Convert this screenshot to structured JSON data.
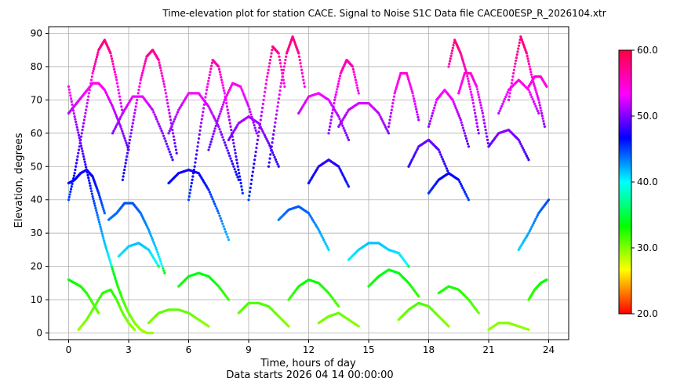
{
  "chart_data": {
    "type": "scatter",
    "title": "Time-elevation plot for station CACE.    Signal to Noise S1C    Data file CACE00ESP_R_2026104.xtr",
    "xlabel": "Time, hours of day",
    "xlabel_sub": "Data starts 2026 04 14 00:00:00",
    "ylabel": "Elevation, degrees",
    "xlim": [
      -1,
      25
    ],
    "ylim": [
      -2,
      92
    ],
    "xticks": [
      0,
      3,
      6,
      9,
      12,
      15,
      18,
      21,
      24
    ],
    "yticks": [
      0,
      10,
      20,
      30,
      40,
      50,
      60,
      70,
      80,
      90
    ],
    "grid": true,
    "colorbar": {
      "min": 20,
      "max": 60,
      "ticks": [
        20.0,
        30.0,
        40.0,
        50.0,
        60.0
      ],
      "tick_labels": [
        "20.0",
        "30.0",
        "40.0",
        "50.0",
        "60.0"
      ],
      "colormap": "hsv"
    },
    "series": [
      {
        "x": [
          0.0,
          0.3,
          0.6,
          0.9,
          1.2,
          1.5,
          1.8,
          2.1,
          2.4,
          2.7,
          3.0,
          3.3,
          3.6,
          3.9,
          4.2
        ],
        "y": [
          74,
          65,
          57,
          49,
          41,
          34,
          27,
          21,
          15,
          10,
          6,
          3,
          1,
          0,
          0
        ]
      },
      {
        "x": [
          0.0,
          0.3,
          0.6,
          0.9,
          1.2,
          1.5,
          1.8,
          2.1,
          2.4,
          2.7
        ],
        "y": [
          40,
          48,
          58,
          68,
          78,
          85,
          88,
          84,
          76,
          66
        ]
      },
      {
        "x": [
          2.7,
          3.0,
          3.3,
          3.6,
          3.9,
          4.2,
          4.5,
          4.8,
          5.1,
          5.4
        ],
        "y": [
          46,
          56,
          66,
          76,
          83,
          85,
          82,
          74,
          64,
          54
        ]
      },
      {
        "x": [
          0.0,
          0.4,
          0.8,
          1.2,
          1.5,
          1.8,
          2.2,
          2.6,
          3.0
        ],
        "y": [
          66,
          69,
          72,
          75,
          75,
          73,
          68,
          62,
          55
        ]
      },
      {
        "x": [
          0.0,
          0.3,
          0.6,
          0.9,
          1.2,
          1.5,
          1.8
        ],
        "y": [
          45,
          46,
          48,
          49,
          47,
          42,
          36
        ]
      },
      {
        "x": [
          0.0,
          0.3,
          0.6,
          0.9,
          1.2,
          1.5
        ],
        "y": [
          16,
          15,
          14,
          12,
          9,
          6
        ]
      },
      {
        "x": [
          0.5,
          0.9,
          1.3,
          1.7,
          2.1,
          2.4,
          2.7,
          3.0,
          3.3
        ],
        "y": [
          1,
          4,
          8,
          12,
          13,
          10,
          6,
          3,
          1
        ]
      },
      {
        "x": [
          2.0,
          2.4,
          2.8,
          3.2,
          3.6,
          4.0,
          4.4,
          4.8
        ],
        "y": [
          34,
          36,
          39,
          39,
          36,
          31,
          25,
          18
        ]
      },
      {
        "x": [
          2.5,
          3.0,
          3.5,
          4.0,
          4.5
        ],
        "y": [
          23,
          26,
          27,
          25,
          20
        ]
      },
      {
        "x": [
          2.2,
          2.7,
          3.2,
          3.7,
          4.2,
          4.7,
          5.2
        ],
        "y": [
          60,
          66,
          71,
          71,
          67,
          60,
          52
        ]
      },
      {
        "x": [
          5.0,
          5.5,
          6.0,
          6.5,
          7.0,
          7.5,
          8.0
        ],
        "y": [
          45,
          48,
          49,
          48,
          43,
          36,
          28
        ]
      },
      {
        "x": [
          5.0,
          5.5,
          6.0,
          6.5,
          7.0,
          7.5,
          8.0,
          8.5
        ],
        "y": [
          60,
          67,
          72,
          72,
          68,
          62,
          54,
          46
        ]
      },
      {
        "x": [
          6.0,
          6.3,
          6.6,
          6.9,
          7.2,
          7.5,
          7.8,
          8.1,
          8.4,
          8.7
        ],
        "y": [
          40,
          50,
          62,
          73,
          82,
          80,
          72,
          62,
          52,
          42
        ]
      },
      {
        "x": [
          4.0,
          4.5,
          5.0,
          5.5,
          6.0,
          6.5,
          7.0
        ],
        "y": [
          3,
          6,
          7,
          7,
          6,
          4,
          2
        ]
      },
      {
        "x": [
          5.5,
          6.0,
          6.5,
          7.0,
          7.5,
          8.0
        ],
        "y": [
          14,
          17,
          18,
          17,
          14,
          10
        ]
      },
      {
        "x": [
          7.0,
          7.4,
          7.8,
          8.2,
          8.6,
          9.0,
          9.4
        ],
        "y": [
          55,
          63,
          70,
          75,
          74,
          68,
          60
        ]
      },
      {
        "x": [
          8.5,
          9.0,
          9.5,
          10.0,
          10.5,
          11.0
        ],
        "y": [
          6,
          9,
          9,
          8,
          5,
          2
        ]
      },
      {
        "x": [
          9.0,
          9.3,
          9.6,
          9.9,
          10.2,
          10.5,
          10.8
        ],
        "y": [
          40,
          52,
          64,
          76,
          86,
          84,
          74
        ]
      },
      {
        "x": [
          10.0,
          10.3,
          10.6,
          10.9,
          11.2,
          11.5,
          11.8
        ],
        "y": [
          50,
          62,
          74,
          84,
          89,
          84,
          74
        ]
      },
      {
        "x": [
          8.0,
          8.5,
          9.0,
          9.5,
          10.0,
          10.5
        ],
        "y": [
          58,
          63,
          65,
          63,
          57,
          50
        ]
      },
      {
        "x": [
          10.5,
          11.0,
          11.5,
          12.0,
          12.5,
          13.0
        ],
        "y": [
          34,
          37,
          38,
          36,
          31,
          25
        ]
      },
      {
        "x": [
          11.5,
          12.0,
          12.5,
          13.0,
          13.5,
          14.0
        ],
        "y": [
          66,
          71,
          72,
          70,
          65,
          58
        ]
      },
      {
        "x": [
          12.0,
          12.5,
          13.0,
          13.5,
          14.0
        ],
        "y": [
          45,
          50,
          52,
          50,
          44
        ]
      },
      {
        "x": [
          13.0,
          13.3,
          13.6,
          13.9,
          14.2,
          14.5
        ],
        "y": [
          60,
          70,
          78,
          82,
          80,
          72
        ]
      },
      {
        "x": [
          11.0,
          11.5,
          12.0,
          12.5,
          13.0,
          13.5
        ],
        "y": [
          10,
          14,
          16,
          15,
          12,
          8
        ]
      },
      {
        "x": [
          12.5,
          13.0,
          13.5,
          14.0,
          14.5
        ],
        "y": [
          3,
          5,
          6,
          4,
          2
        ]
      },
      {
        "x": [
          13.5,
          14.0,
          14.5,
          15.0,
          15.5,
          16.0
        ],
        "y": [
          62,
          67,
          69,
          69,
          66,
          60
        ]
      },
      {
        "x": [
          14.0,
          14.5,
          15.0,
          15.5,
          16.0,
          16.5,
          17.0
        ],
        "y": [
          22,
          25,
          27,
          27,
          25,
          24,
          20
        ]
      },
      {
        "x": [
          15.0,
          15.5,
          16.0,
          16.5,
          17.0,
          17.5
        ],
        "y": [
          14,
          17,
          19,
          18,
          15,
          11
        ]
      },
      {
        "x": [
          16.0,
          16.3,
          16.6,
          16.9,
          17.2,
          17.5
        ],
        "y": [
          62,
          72,
          78,
          78,
          72,
          64
        ]
      },
      {
        "x": [
          17.0,
          17.5,
          18.0,
          18.5,
          19.0
        ],
        "y": [
          50,
          56,
          58,
          55,
          48
        ]
      },
      {
        "x": [
          16.5,
          17.0,
          17.5,
          18.0,
          18.5,
          19.0
        ],
        "y": [
          4,
          7,
          9,
          8,
          5,
          2
        ]
      },
      {
        "x": [
          18.0,
          18.5,
          19.0,
          19.5,
          20.0
        ],
        "y": [
          42,
          46,
          48,
          46,
          40
        ]
      },
      {
        "x": [
          18.0,
          18.4,
          18.8,
          19.2,
          19.6,
          20.0
        ],
        "y": [
          62,
          70,
          73,
          70,
          64,
          56
        ]
      },
      {
        "x": [
          19.0,
          19.3,
          19.6,
          19.9,
          20.2,
          20.5
        ],
        "y": [
          80,
          88,
          84,
          78,
          70,
          60
        ]
      },
      {
        "x": [
          19.5,
          19.8,
          20.1,
          20.4,
          20.7,
          21.0
        ],
        "y": [
          72,
          78,
          78,
          74,
          66,
          56
        ]
      },
      {
        "x": [
          18.5,
          19.0,
          19.5,
          20.0,
          20.5
        ],
        "y": [
          12,
          14,
          13,
          10,
          6
        ]
      },
      {
        "x": [
          21.0,
          21.5,
          22.0,
          22.5,
          23.0
        ],
        "y": [
          56,
          60,
          61,
          58,
          52
        ]
      },
      {
        "x": [
          21.5,
          22.0,
          22.5,
          23.0,
          23.5
        ],
        "y": [
          66,
          73,
          76,
          73,
          66
        ]
      },
      {
        "x": [
          22.0,
          22.3,
          22.6,
          22.9,
          23.2,
          23.5,
          23.8
        ],
        "y": [
          70,
          80,
          89,
          84,
          76,
          70,
          62
        ]
      },
      {
        "x": [
          23.0,
          23.3,
          23.6,
          23.9
        ],
        "y": [
          74,
          77,
          77,
          74
        ]
      },
      {
        "x": [
          21.0,
          21.5,
          22.0,
          22.5,
          23.0
        ],
        "y": [
          1,
          3,
          3,
          2,
          1
        ]
      },
      {
        "x": [
          23.0,
          23.3,
          23.6,
          23.9
        ],
        "y": [
          10,
          13,
          15,
          16
        ]
      },
      {
        "x": [
          22.5,
          23.0,
          23.5,
          24.0
        ],
        "y": [
          25,
          30,
          36,
          40
        ]
      }
    ]
  }
}
